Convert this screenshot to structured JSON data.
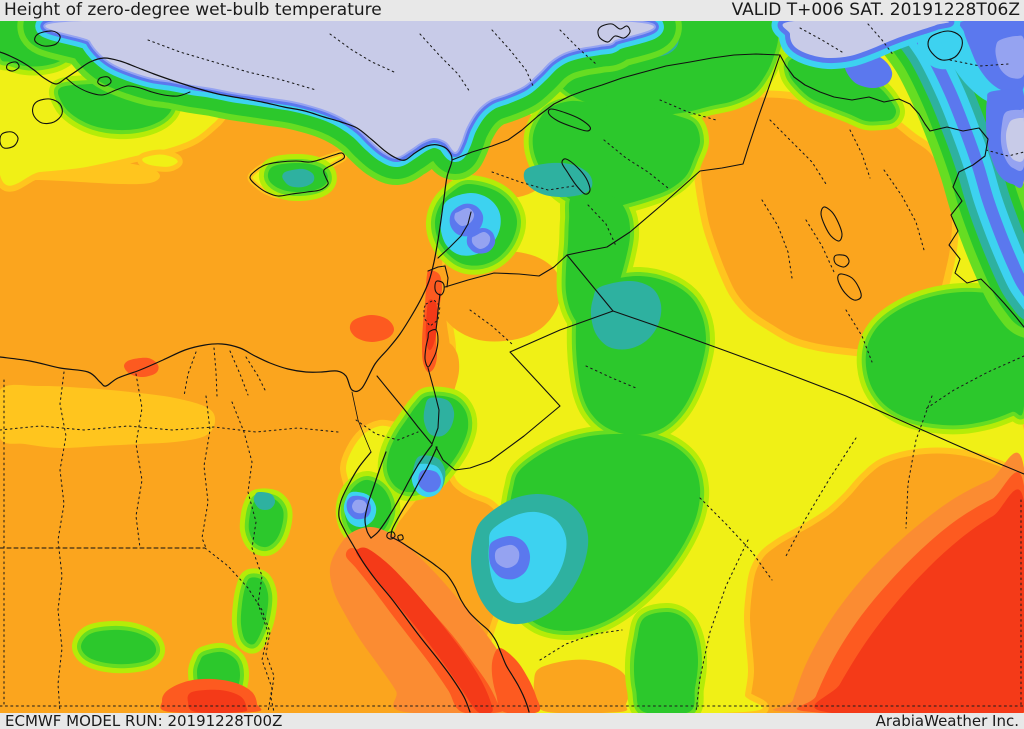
{
  "header": {
    "title": "Height of zero-degree wet-bulb temperature",
    "valid_label": "VALID T+006 SAT. 20191228T06Z"
  },
  "footer": {
    "model_run_label": "ECMWF MODEL RUN: 20191228T00Z",
    "credit_label": "ArabiaWeather Inc."
  },
  "map": {
    "kind": "filled-contour weather map",
    "area": "Eastern Mediterranean and Middle East"
  },
  "palette": {
    "lavender": "#c8cbe8",
    "periwinkle": "#95a3f1",
    "blue": "#5b78ee",
    "cyan": "#3dd2f0",
    "teal": "#2eb1a0",
    "green": "#2cc82c",
    "brightgreen": "#66dd22",
    "yellowgreen": "#b5ec08",
    "yellow": "#f0f016",
    "amber": "#ffc51e",
    "orange": "#fba51e",
    "darkorange": "#fb8c32",
    "redorange": "#fd5a20",
    "red": "#f43a18",
    "land_line": "#111111",
    "admin_line": "#1c1c1c",
    "bar_bg": "#e8e8e8",
    "bar_text": "#1a1a1a"
  }
}
